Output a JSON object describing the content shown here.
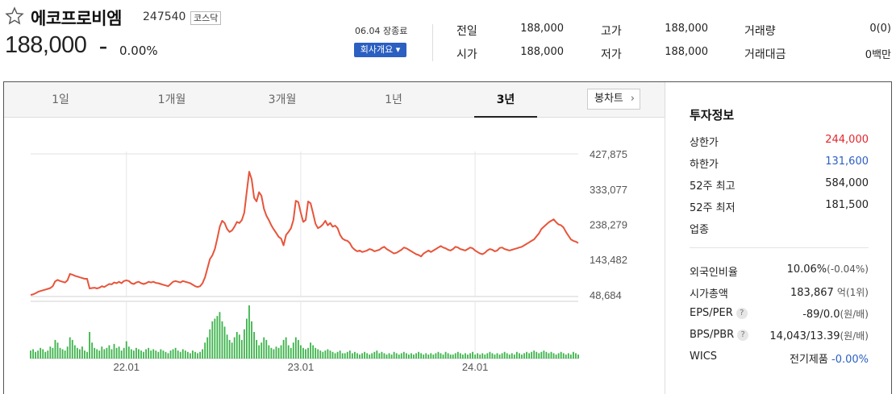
{
  "header": {
    "company_name": "에코프로비엠",
    "code": "247540",
    "market": "코스닥",
    "price": "188,000",
    "change_symbol": "–",
    "change_rate": "0.00%",
    "date_status": "06.04 장종료",
    "company_button": "회사개요 ▾"
  },
  "stats": {
    "prev_label": "전일",
    "prev_value": "188,000",
    "high_label": "고가",
    "high_value": "188,000",
    "volume_label": "거래량",
    "volume_value": "0(0)",
    "open_label": "시가",
    "open_value": "188,000",
    "low_label": "저가",
    "low_value": "188,000",
    "amount_label": "거래대금",
    "amount_value": "0백만"
  },
  "tabs": [
    "1일",
    "1개월",
    "3개월",
    "1년",
    "3년"
  ],
  "active_tab": "3년",
  "candle_button": "봉차트",
  "colors": {
    "line": "#e8543a",
    "volume": "#3cb34a",
    "up": "#e3262b",
    "down": "#2b5fc1"
  },
  "investment": {
    "title": "투자정보",
    "upper_limit_label": "상한가",
    "upper_limit_value": "244,000",
    "lower_limit_label": "하한가",
    "lower_limit_value": "131,600",
    "high52_label": "52주 최고",
    "high52_value": "584,000",
    "low52_label": "52주 최저",
    "low52_value": "181,500",
    "sector_label": "업종",
    "foreign_label": "외국인비율",
    "foreign_value": "10.06%",
    "foreign_change": "(-0.04%)",
    "mktcap_label": "시가총액",
    "mktcap_value": "183,867",
    "mktcap_unit": "억(1위)",
    "eps_per_label": "EPS/PER",
    "eps_per_value": "-89/0.0",
    "eps_per_unit": "(원/배)",
    "bps_pbr_label": "BPS/PBR",
    "bps_pbr_value": "14,043/13.39",
    "bps_pbr_unit": "(원/배)",
    "wics_label": "WICS",
    "wics_value": "전기제품",
    "wics_change": "-0.00%",
    "help_icon": "?"
  },
  "chart_data": {
    "type": "line",
    "y_ticks": [
      "427,875",
      "333,077",
      "238,279",
      "143,482",
      "48,684"
    ],
    "y_tick_values": [
      427875,
      333077,
      238279,
      143482,
      48684
    ],
    "x_ticks": [
      "22.01",
      "23.01",
      "24.01"
    ],
    "x_tick_index": [
      39,
      110,
      181
    ],
    "ylim": [
      48684,
      427875
    ],
    "price": [
      48700,
      50000,
      53000,
      57000,
      59000,
      61000,
      63000,
      65000,
      67000,
      72000,
      85000,
      89000,
      86000,
      84000,
      82000,
      88000,
      105000,
      103000,
      100000,
      98000,
      96000,
      94000,
      92000,
      92000,
      66000,
      67000,
      68000,
      66000,
      68000,
      72000,
      70000,
      74000,
      78000,
      77000,
      82000,
      80000,
      84000,
      80000,
      86000,
      88000,
      86000,
      80000,
      78000,
      82000,
      84000,
      80000,
      78000,
      80000,
      84000,
      82000,
      84000,
      81000,
      80000,
      78000,
      76000,
      74000,
      72000,
      78000,
      84000,
      86000,
      84000,
      82000,
      86000,
      84000,
      82000,
      80000,
      76000,
      72000,
      70000,
      72000,
      80000,
      96000,
      120000,
      145000,
      155000,
      172000,
      200000,
      232000,
      248000,
      242000,
      226000,
      218000,
      222000,
      232000,
      245000,
      242000,
      250000,
      270000,
      325000,
      380000,
      360000,
      310000,
      300000,
      325000,
      315000,
      280000,
      262000,
      250000,
      236000,
      225000,
      215000,
      205000,
      200000,
      182000,
      210000,
      218000,
      228000,
      250000,
      302000,
      298000,
      270000,
      245000,
      250000,
      300000,
      295000,
      268000,
      240000,
      228000,
      232000,
      238000,
      248000,
      236000,
      242000,
      232000,
      235000,
      228000,
      210000,
      200000,
      196000,
      194000,
      188000,
      176000,
      170000,
      166000,
      168000,
      164000,
      166000,
      168000,
      172000,
      170000,
      166000,
      168000,
      170000,
      175000,
      178000,
      172000,
      168000,
      164000,
      160000,
      162000,
      166000,
      170000,
      176000,
      174000,
      170000,
      166000,
      162000,
      158000,
      156000,
      152000,
      160000,
      164000,
      168000,
      164000,
      168000,
      172000,
      176000,
      180000,
      176000,
      174000,
      170000,
      168000,
      172000,
      178000,
      176000,
      172000,
      170000,
      168000,
      172000,
      176000,
      174000,
      168000,
      164000,
      160000,
      158000,
      162000,
      168000,
      172000,
      170000,
      166000,
      168000,
      175000,
      176000,
      172000,
      170000,
      168000,
      170000,
      172000,
      174000,
      176000,
      178000,
      182000,
      186000,
      190000,
      194000,
      198000,
      206000,
      214000,
      226000,
      232000,
      238000,
      244000,
      248000,
      252000,
      244000,
      238000,
      236000,
      230000,
      218000,
      208000,
      198000,
      194000,
      192000,
      188000
    ],
    "volume": [
      6,
      7,
      5,
      6,
      8,
      7,
      5,
      6,
      9,
      8,
      14,
      12,
      8,
      7,
      6,
      9,
      16,
      14,
      10,
      8,
      7,
      9,
      6,
      5,
      20,
      12,
      8,
      7,
      6,
      9,
      7,
      8,
      10,
      7,
      11,
      8,
      9,
      6,
      8,
      13,
      9,
      7,
      6,
      8,
      7,
      6,
      5,
      7,
      8,
      6,
      7,
      6,
      5,
      7,
      6,
      5,
      4,
      6,
      7,
      8,
      6,
      5,
      7,
      6,
      5,
      4,
      6,
      5,
      4,
      5,
      7,
      12,
      16,
      22,
      28,
      30,
      32,
      35,
      28,
      24,
      18,
      14,
      12,
      16,
      20,
      18,
      14,
      22,
      30,
      40,
      28,
      20,
      14,
      10,
      12,
      16,
      14,
      10,
      8,
      7,
      9,
      8,
      10,
      14,
      16,
      10,
      8,
      12,
      16,
      14,
      10,
      8,
      7,
      8,
      12,
      10,
      8,
      7,
      6,
      5,
      6,
      7,
      6,
      5,
      4,
      5,
      6,
      4,
      4,
      5,
      6,
      4,
      5,
      4,
      3,
      4,
      5,
      4,
      3,
      4,
      5,
      6,
      4,
      5,
      4,
      3,
      4,
      3,
      5,
      4,
      3,
      4,
      5,
      4,
      3,
      4,
      3,
      4,
      5,
      4,
      3,
      4,
      3,
      4,
      3,
      4,
      5,
      4,
      3,
      5,
      4,
      3,
      3,
      4,
      5,
      4,
      3,
      4,
      3,
      4,
      5,
      3,
      4,
      3,
      4,
      3,
      4,
      5,
      4,
      3,
      4,
      3,
      4,
      5,
      4,
      3,
      4,
      3,
      5,
      4,
      3,
      4,
      5,
      4,
      5,
      6,
      5,
      4,
      5,
      6,
      5,
      4,
      5,
      4,
      3,
      4,
      5,
      4,
      3,
      4,
      3,
      5,
      4,
      3
    ]
  }
}
